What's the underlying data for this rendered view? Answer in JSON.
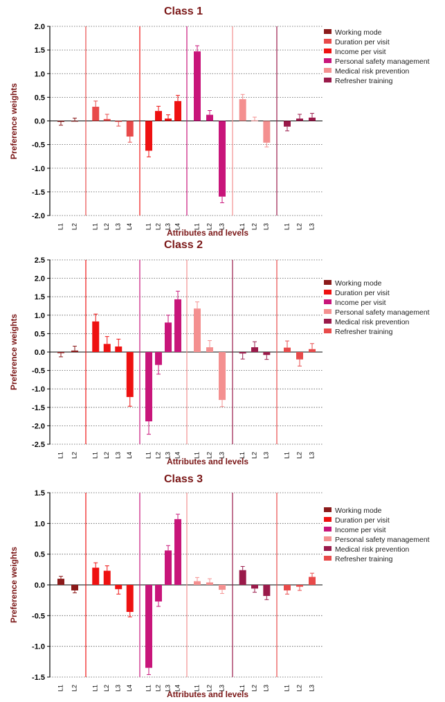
{
  "chart_data": [
    {
      "type": "bar",
      "title": "Class 1",
      "xlabel": "Attributes and levels",
      "ylabel": "Preference weights",
      "ylim": [
        -2.0,
        2.0
      ],
      "yticks": [
        "2.0",
        "1.5",
        "1.0",
        "0.5",
        "0.0",
        "-0.5",
        "-1.0",
        "-1.5",
        "-2.0"
      ],
      "grid": "dotted horizontal",
      "legend_position": "top-right",
      "groups": [
        {
          "attribute": "Working mode",
          "color": "#8b1a1a",
          "levels": [
            "L1",
            "L2"
          ],
          "values": [
            -0.02,
            0.0
          ],
          "errors": [
            0.07,
            0.06
          ]
        },
        {
          "attribute": "Duration per visit",
          "color": "#e84a4a",
          "levels": [
            "L1",
            "L2",
            "L3",
            "L4"
          ],
          "values": [
            0.3,
            0.04,
            -0.02,
            -0.33
          ],
          "errors": [
            0.12,
            0.1,
            0.09,
            0.12
          ]
        },
        {
          "attribute": "Income per visit",
          "color": "#ee1111",
          "levels": [
            "L1",
            "L2",
            "L3",
            "L4"
          ],
          "values": [
            -0.63,
            0.21,
            0.05,
            0.42
          ],
          "errors": [
            0.13,
            0.1,
            0.08,
            0.12
          ]
        },
        {
          "attribute": "Personal safety management",
          "color": "#c8157a",
          "levels": [
            "L1",
            "L2",
            "L3"
          ],
          "values": [
            1.47,
            0.13,
            -1.6
          ],
          "errors": [
            0.12,
            0.09,
            0.13
          ]
        },
        {
          "attribute": "Medical risk prevention",
          "color": "#f49090",
          "levels": [
            "L1",
            "L2",
            "L3"
          ],
          "values": [
            0.46,
            0.01,
            -0.46
          ],
          "errors": [
            0.1,
            0.07,
            0.09
          ]
        },
        {
          "attribute": "Refresher training",
          "color": "#9a1a4a",
          "levels": [
            "L1",
            "L2",
            "L3"
          ],
          "values": [
            -0.12,
            0.05,
            0.07
          ],
          "errors": [
            0.09,
            0.09,
            0.09
          ]
        }
      ]
    },
    {
      "type": "bar",
      "title": "Class 2",
      "xlabel": "Attributes and levels",
      "ylabel": "Preference weights",
      "ylim": [
        -2.5,
        2.5
      ],
      "yticks": [
        "2.5",
        "2.0",
        "1.5",
        "1.0",
        "0.5",
        "0.0",
        "-0.5",
        "-1.0",
        "-1.5",
        "-2.0",
        "-2.5"
      ],
      "grid": "dotted horizontal",
      "legend_position": "top-right",
      "groups": [
        {
          "attribute": "Working mode",
          "color": "#8b1a1a",
          "levels": [
            "L1",
            "L2"
          ],
          "values": [
            -0.03,
            0.04
          ],
          "errors": [
            0.1,
            0.12
          ]
        },
        {
          "attribute": "Duration per visit",
          "color": "#ee1111",
          "levels": [
            "L1",
            "L2",
            "L3",
            "L4"
          ],
          "values": [
            0.83,
            0.22,
            0.15,
            -1.22
          ],
          "errors": [
            0.2,
            0.2,
            0.2,
            0.25
          ]
        },
        {
          "attribute": "Income per visit",
          "color": "#c8157a",
          "levels": [
            "L1",
            "L2",
            "L3",
            "L4"
          ],
          "values": [
            -1.88,
            -0.35,
            0.8,
            1.43
          ],
          "errors": [
            0.35,
            0.25,
            0.2,
            0.22
          ]
        },
        {
          "attribute": "Personal safety management",
          "color": "#f49090",
          "levels": [
            "L1",
            "L2",
            "L3"
          ],
          "values": [
            1.18,
            0.13,
            -1.3
          ],
          "errors": [
            0.18,
            0.18,
            0.18
          ]
        },
        {
          "attribute": "Medical risk prevention",
          "color": "#9a1a4a",
          "levels": [
            "L1",
            "L2",
            "L3"
          ],
          "values": [
            -0.04,
            0.13,
            -0.08
          ],
          "errors": [
            0.15,
            0.15,
            0.12
          ]
        },
        {
          "attribute": "Refresher training",
          "color": "#e84a4a",
          "levels": [
            "L1",
            "L2",
            "L3"
          ],
          "values": [
            0.12,
            -0.2,
            0.08
          ],
          "errors": [
            0.18,
            0.18,
            0.15
          ]
        }
      ]
    },
    {
      "type": "bar",
      "title": "Class 3",
      "xlabel": "Attributes and levels",
      "ylabel": "Preference weights",
      "ylim": [
        -1.5,
        1.5
      ],
      "yticks": [
        "1.5",
        "1.0",
        "0.5",
        "0.0",
        "-0.5",
        "-1.0",
        "-1.5"
      ],
      "grid": "dotted horizontal",
      "legend_position": "top-right",
      "groups": [
        {
          "attribute": "Working mode",
          "color": "#8b1a1a",
          "levels": [
            "L1",
            "L2"
          ],
          "values": [
            0.1,
            -0.09
          ],
          "errors": [
            0.04,
            0.04
          ]
        },
        {
          "attribute": "Duration per visit",
          "color": "#ee1111",
          "levels": [
            "L1",
            "L2",
            "L3",
            "L4"
          ],
          "values": [
            0.28,
            0.23,
            -0.07,
            -0.44
          ],
          "errors": [
            0.08,
            0.08,
            0.08,
            0.08
          ]
        },
        {
          "attribute": "Income per visit",
          "color": "#c8157a",
          "levels": [
            "L1",
            "L2",
            "L3",
            "L4"
          ],
          "values": [
            -1.35,
            -0.27,
            0.56,
            1.07
          ],
          "errors": [
            0.11,
            0.08,
            0.08,
            0.08
          ]
        },
        {
          "attribute": "Personal safety management",
          "color": "#f49090",
          "levels": [
            "L1",
            "L2",
            "L3"
          ],
          "values": [
            0.06,
            0.04,
            -0.08
          ],
          "errors": [
            0.06,
            0.06,
            0.06
          ]
        },
        {
          "attribute": "Medical risk prevention",
          "color": "#9a1a4a",
          "levels": [
            "L1",
            "L2",
            "L3"
          ],
          "values": [
            0.24,
            -0.06,
            -0.18
          ],
          "errors": [
            0.06,
            0.06,
            0.06
          ]
        },
        {
          "attribute": "Refresher training",
          "color": "#e84a4a",
          "levels": [
            "L1",
            "L2",
            "L3"
          ],
          "values": [
            -0.09,
            -0.03,
            0.13
          ],
          "errors": [
            0.06,
            0.06,
            0.06
          ]
        }
      ]
    }
  ]
}
